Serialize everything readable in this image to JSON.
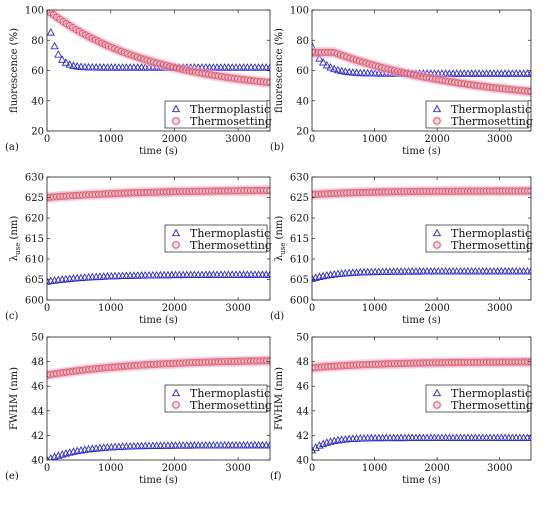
{
  "colors": {
    "thermoplastic": "#2a2ad6",
    "thermosetting": "#d8543c",
    "thermosetting_glow": "#f2a6d6"
  },
  "chart_data": [
    {
      "type": "scatter",
      "panel_label": "(a)",
      "xlabel": "time (s)",
      "ylabel": "fluorescence (%)",
      "ylabel_parts": {
        "main": "fluorescence (%)",
        "sub": ""
      },
      "xlim": [
        0,
        3500
      ],
      "ylim": [
        20,
        100
      ],
      "xticks": [
        0,
        1000,
        2000,
        3000
      ],
      "yticks": [
        20,
        40,
        60,
        80,
        100
      ],
      "legend_position": "lower-right",
      "series": [
        {
          "name": "Thermoplastic",
          "marker": "triangle",
          "model": {
            "kind": "exp",
            "y0": 100,
            "yinf": 62,
            "tau": 120
          }
        },
        {
          "name": "Thermosetting",
          "marker": "circle",
          "model": {
            "kind": "exp",
            "y0": 100,
            "yinf": 45,
            "tau": 1700
          }
        }
      ]
    },
    {
      "type": "scatter",
      "panel_label": "(b)",
      "xlabel": "time (s)",
      "ylabel": "fluorescence (%)",
      "ylabel_parts": {
        "main": "fluorescence (%)",
        "sub": ""
      },
      "xlim": [
        0,
        3500
      ],
      "ylim": [
        20,
        100
      ],
      "xticks": [
        0,
        1000,
        2000,
        3000
      ],
      "yticks": [
        20,
        40,
        60,
        80,
        100
      ],
      "legend_position": "lower-right",
      "series": [
        {
          "name": "Thermoplastic",
          "marker": "triangle",
          "model": {
            "kind": "exp",
            "y0": 76,
            "yinf": 58,
            "tau": 200
          }
        },
        {
          "name": "Thermosetting",
          "marker": "circle",
          "model": {
            "kind": "plateau",
            "y0": 72,
            "yinf": 38,
            "tau": 2200,
            "hold": 350
          }
        }
      ]
    },
    {
      "type": "scatter",
      "panel_label": "(c)",
      "xlabel": "time (s)",
      "ylabel": "λuse (nm)",
      "ylabel_parts": {
        "main": "λ",
        "sub": "use",
        "unit": "(nm)"
      },
      "xlim": [
        0,
        3500
      ],
      "ylim": [
        600,
        630
      ],
      "xticks": [
        0,
        1000,
        2000,
        3000
      ],
      "yticks": [
        600,
        605,
        610,
        615,
        620,
        625,
        630
      ],
      "legend_position": "center-right",
      "series": [
        {
          "name": "Thermoplastic",
          "marker": "triangle",
          "model": {
            "kind": "exp",
            "y0": 604.5,
            "yinf": 606.2,
            "tau": 700
          }
        },
        {
          "name": "Thermosetting",
          "marker": "circle",
          "model": {
            "kind": "exp",
            "y0": 625.0,
            "yinf": 626.9,
            "tau": 1500
          }
        }
      ]
    },
    {
      "type": "scatter",
      "panel_label": "(d)",
      "xlabel": "time (s)",
      "ylabel": "λuse (nm)",
      "ylabel_parts": {
        "main": "λ",
        "sub": "use",
        "unit": "(nm)"
      },
      "xlim": [
        0,
        3500
      ],
      "ylim": [
        600,
        630
      ],
      "xticks": [
        0,
        1000,
        2000,
        3000
      ],
      "yticks": [
        600,
        605,
        610,
        615,
        620,
        625,
        630
      ],
      "legend_position": "center-right",
      "series": [
        {
          "name": "Thermoplastic",
          "marker": "triangle",
          "model": {
            "kind": "exp",
            "y0": 605.2,
            "yinf": 607.0,
            "tau": 400
          }
        },
        {
          "name": "Thermosetting",
          "marker": "circle",
          "model": {
            "kind": "exp",
            "y0": 625.7,
            "yinf": 626.6,
            "tau": 900
          }
        }
      ]
    },
    {
      "type": "scatter",
      "panel_label": "(e)",
      "xlabel": "time (s)",
      "ylabel": "FWHM (nm)",
      "ylabel_parts": {
        "main": "FWHM (nm)",
        "sub": ""
      },
      "xlim": [
        0,
        3500
      ],
      "ylim": [
        40,
        50
      ],
      "xticks": [
        0,
        1000,
        2000,
        3000
      ],
      "yticks": [
        40,
        42,
        44,
        46,
        48,
        50
      ],
      "legend_position": "center-right",
      "series": [
        {
          "name": "Thermoplastic",
          "marker": "triangle",
          "model": {
            "kind": "exp",
            "y0": 40.0,
            "yinf": 41.2,
            "tau": 500
          }
        },
        {
          "name": "Thermosetting",
          "marker": "circle",
          "model": {
            "kind": "exp",
            "y0": 46.9,
            "yinf": 48.2,
            "tau": 1500
          }
        }
      ]
    },
    {
      "type": "scatter",
      "panel_label": "(f)",
      "xlabel": "time (s)",
      "ylabel": "FWHM (nm)",
      "ylabel_parts": {
        "main": "FWHM (nm)",
        "sub": ""
      },
      "xlim": [
        0,
        3500
      ],
      "ylim": [
        40,
        50
      ],
      "xticks": [
        0,
        1000,
        2000,
        3000
      ],
      "yticks": [
        40,
        42,
        44,
        46,
        48,
        50
      ],
      "legend_position": "center-right",
      "series": [
        {
          "name": "Thermoplastic",
          "marker": "triangle",
          "model": {
            "kind": "exp",
            "y0": 40.8,
            "yinf": 41.8,
            "tau": 250
          }
        },
        {
          "name": "Thermosetting",
          "marker": "circle",
          "model": {
            "kind": "exp",
            "y0": 47.5,
            "yinf": 48.0,
            "tau": 1200
          }
        }
      ]
    }
  ]
}
